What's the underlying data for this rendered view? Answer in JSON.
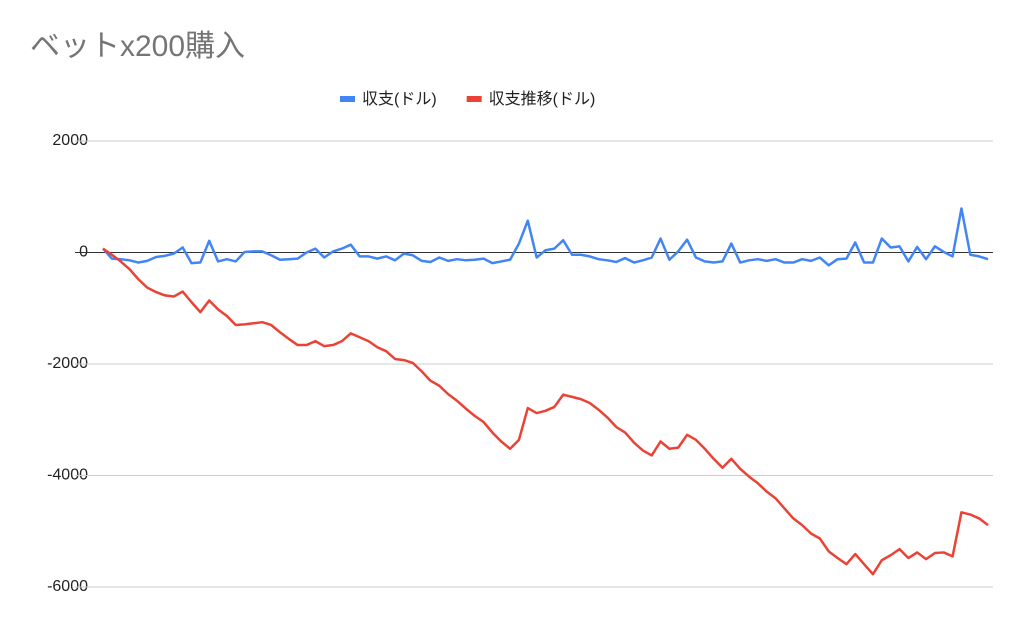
{
  "chart_data": {
    "type": "line",
    "title": "ベットx200購入",
    "series": [
      {
        "name": "収支(ドル)",
        "color": "#4285f4",
        "values": [
          70,
          -110,
          -120,
          -140,
          -180,
          -150,
          -80,
          -60,
          -20,
          90,
          -190,
          -180,
          210,
          -160,
          -120,
          -160,
          10,
          20,
          20,
          -50,
          -130,
          -120,
          -110,
          0,
          70,
          -90,
          20,
          70,
          140,
          -70,
          -70,
          -110,
          -70,
          -140,
          -20,
          -50,
          -150,
          -170,
          -90,
          -150,
          -120,
          -140,
          -130,
          -110,
          -190,
          -160,
          -130,
          160,
          570,
          -90,
          40,
          70,
          220,
          -40,
          -40,
          -70,
          -120,
          -140,
          -170,
          -100,
          -180,
          -140,
          -90,
          250,
          -130,
          20,
          230,
          -90,
          -160,
          -180,
          -160,
          160,
          -180,
          -140,
          -120,
          -150,
          -120,
          -180,
          -180,
          -120,
          -150,
          -90,
          -230,
          -120,
          -110,
          180,
          -180,
          -180,
          250,
          90,
          110,
          -160,
          100,
          -120,
          110,
          10,
          -70,
          790,
          -40,
          -70,
          -120
        ]
      },
      {
        "name": "収支推移(ドル)",
        "color": "#ea4335",
        "values": [
          70,
          -40,
          -160,
          -300,
          -480,
          -630,
          -710,
          -770,
          -790,
          -700,
          -890,
          -1070,
          -860,
          -1020,
          -1140,
          -1300,
          -1290,
          -1270,
          -1250,
          -1300,
          -1430,
          -1550,
          -1660,
          -1660,
          -1590,
          -1680,
          -1660,
          -1590,
          -1450,
          -1520,
          -1590,
          -1700,
          -1770,
          -1910,
          -1930,
          -1980,
          -2130,
          -2300,
          -2390,
          -2540,
          -2660,
          -2800,
          -2930,
          -3040,
          -3230,
          -3390,
          -3520,
          -3360,
          -2790,
          -2880,
          -2840,
          -2770,
          -2550,
          -2590,
          -2630,
          -2700,
          -2820,
          -2960,
          -3130,
          -3230,
          -3410,
          -3550,
          -3640,
          -3390,
          -3520,
          -3500,
          -3270,
          -3360,
          -3520,
          -3700,
          -3860,
          -3700,
          -3880,
          -4020,
          -4140,
          -4290,
          -4410,
          -4590,
          -4770,
          -4890,
          -5040,
          -5130,
          -5360,
          -5480,
          -5590,
          -5410,
          -5590,
          -5770,
          -5520,
          -5430,
          -5320,
          -5480,
          -5380,
          -5500,
          -5390,
          -5380,
          -5450,
          -4660,
          -4700,
          -4770,
          -4890
        ]
      }
    ],
    "ylim": [
      -6000,
      2000
    ],
    "yticks": [
      2000,
      0,
      -2000,
      -4000,
      -6000
    ],
    "grid": true,
    "legend": "top"
  }
}
